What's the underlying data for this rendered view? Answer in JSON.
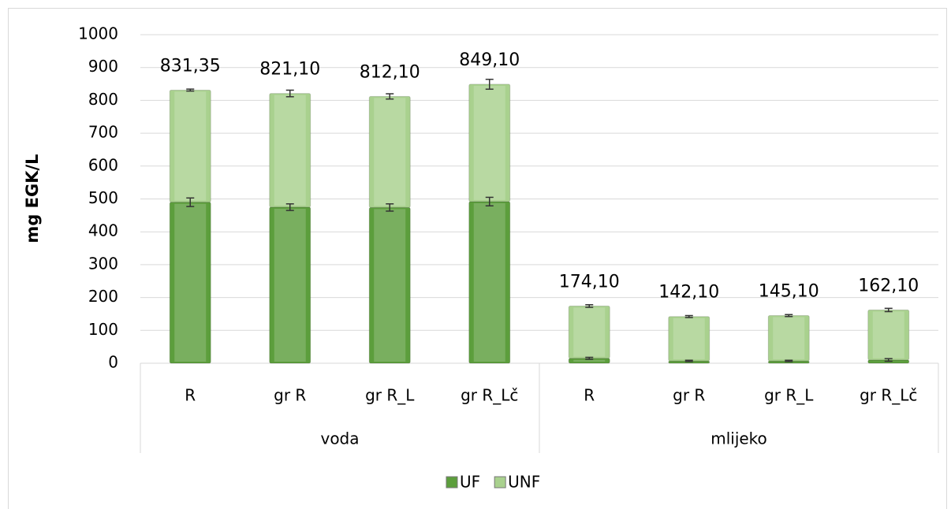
{
  "chart_data": {
    "type": "stacked_bar",
    "y_label": "mg EGK/L",
    "categories": [
      "R",
      "gr R",
      "gr R_L",
      "gr R_Lč",
      "R",
      "gr R",
      "gr R_L",
      "gr R_Lč"
    ],
    "groups": [
      "voda",
      "mlijeko"
    ],
    "series": [
      {
        "name": "UF",
        "color": "#5c9e3c",
        "values": [
          490,
          475,
          474,
          492,
          15,
          7,
          7,
          10
        ],
        "errors": [
          13,
          10,
          11,
          13,
          3,
          2,
          2,
          4
        ]
      },
      {
        "name": "UNF",
        "color": "#a9d18e",
        "values": [
          341.35,
          346.1,
          338.1,
          357.1,
          159.1,
          135.1,
          138.1,
          152.1
        ],
        "errors": [
          3,
          10,
          8,
          15,
          4,
          3,
          3,
          5
        ]
      }
    ],
    "totals": [
      831.35,
      821.1,
      812.1,
      849.1,
      174.1,
      142.1,
      145.1,
      162.1
    ],
    "total_labels": [
      "831,35",
      "821,10",
      "812,10",
      "849,10",
      "174,10",
      "142,10",
      "145,10",
      "162,10"
    ],
    "ylim": [
      0,
      1000
    ],
    "yticks": [
      0,
      100,
      200,
      300,
      400,
      500,
      600,
      700,
      800,
      900,
      1000
    ],
    "grid": true,
    "legend": "bottom"
  }
}
